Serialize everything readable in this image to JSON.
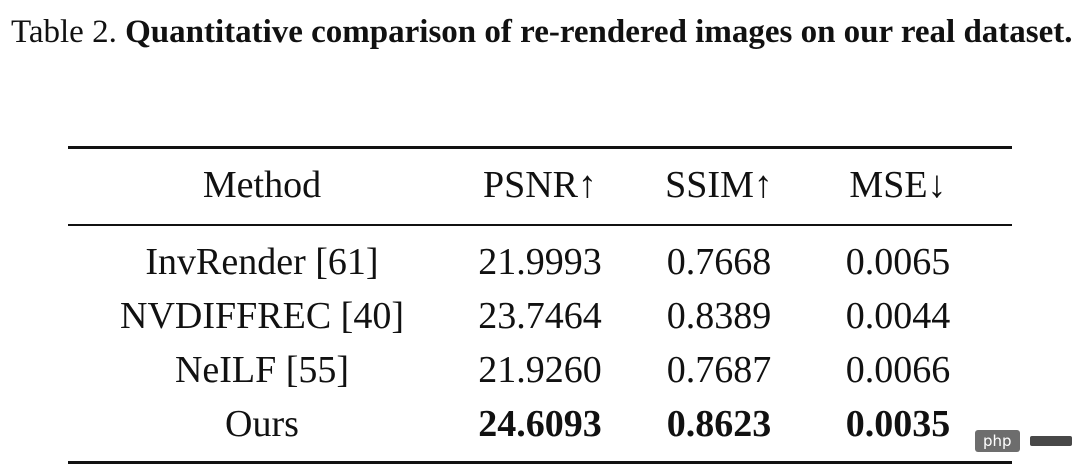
{
  "caption": {
    "label": "Table 2.",
    "title": "Quantitative comparison of re-rendered images on our real dataset."
  },
  "table": {
    "headers": [
      "Method",
      "PSNR↑",
      "SSIM↑",
      "MSE↓"
    ],
    "rows": [
      {
        "method": "InvRender [61]",
        "psnr": "21.9993",
        "ssim": "0.7668",
        "mse": "0.0065"
      },
      {
        "method": "NVDIFFREC [40]",
        "psnr": "23.7464",
        "ssim": "0.8389",
        "mse": "0.0044"
      },
      {
        "method": "NeILF [55]",
        "psnr": "21.9260",
        "ssim": "0.7687",
        "mse": "0.0066"
      },
      {
        "method": "Ours",
        "psnr": "24.6093",
        "ssim": "0.8623",
        "mse": "0.0035"
      }
    ],
    "best_row": "Ours"
  },
  "watermark": {
    "text": "php"
  }
}
